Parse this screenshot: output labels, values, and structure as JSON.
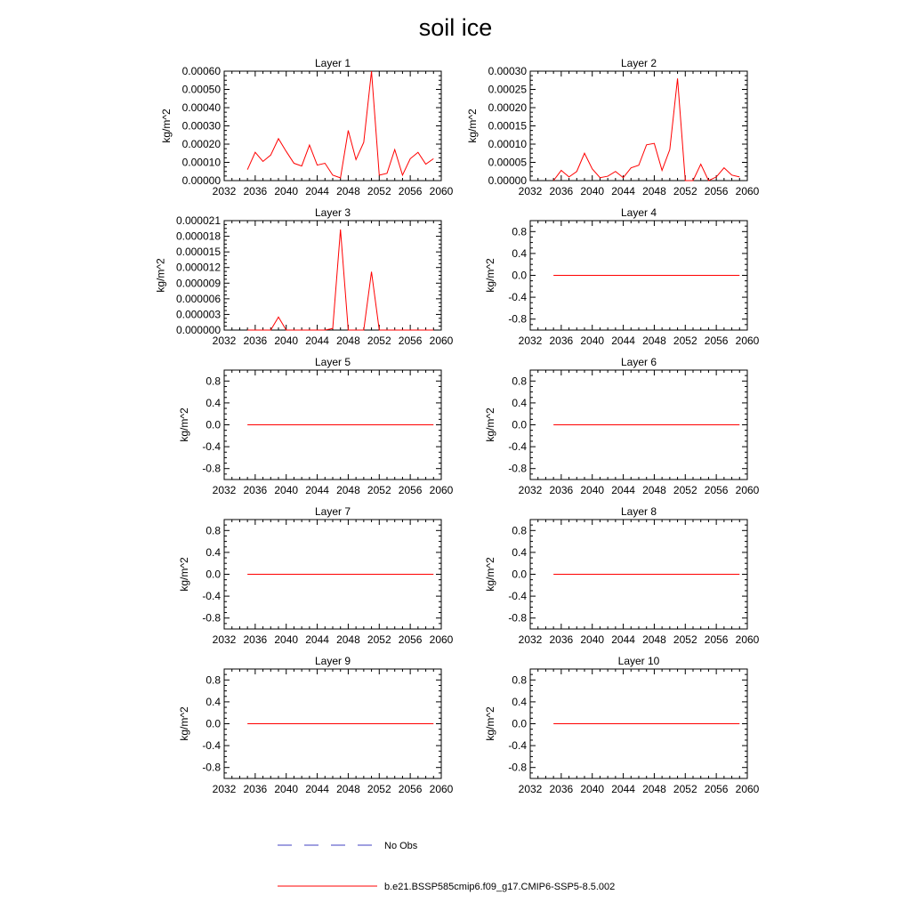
{
  "title": "soil ice",
  "x_ticks": [
    2032,
    2036,
    2040,
    2044,
    2048,
    2052,
    2056,
    2060
  ],
  "legend": [
    {
      "label": "No Obs",
      "color": "#4040c0",
      "style": "dashed"
    },
    {
      "label": "b.e21.BSSP585cmip6.f09_g17.CMIP6-SSP5-8.5.002",
      "color": "#ff0000",
      "style": "solid"
    }
  ],
  "chart_data": [
    {
      "type": "line",
      "title": "Layer 1",
      "ylabel": "kg/m^2",
      "xlim": [
        2032,
        2060
      ],
      "ylim": [
        0,
        0.0006
      ],
      "yticks": [
        "0.00000",
        "0.00010",
        "0.00020",
        "0.00030",
        "0.00040",
        "0.00050",
        "0.00060"
      ],
      "x": [
        2035,
        2036,
        2037,
        2038,
        2039,
        2040,
        2041,
        2042,
        2043,
        2044,
        2045,
        2046,
        2047,
        2048,
        2049,
        2050,
        2051,
        2052,
        2053,
        2054,
        2055,
        2056,
        2057,
        2058,
        2059
      ],
      "series": [
        {
          "color": "#ff0000",
          "values": [
            6e-05,
            0.000155,
            0.000105,
            0.00014,
            0.00023,
            0.00016,
            9.5e-05,
            8e-05,
            0.000195,
            8.5e-05,
            9.5e-05,
            3e-05,
            1.5e-05,
            0.000275,
            0.000115,
            0.00021,
            0.0006,
            3e-05,
            4e-05,
            0.00017,
            3e-05,
            0.00012,
            0.000155,
            9e-05,
            0.00012
          ]
        }
      ]
    },
    {
      "type": "line",
      "title": "Layer 2",
      "ylabel": "kg/m^2",
      "xlim": [
        2032,
        2060
      ],
      "ylim": [
        0,
        0.0003
      ],
      "yticks": [
        "0.00000",
        "0.00005",
        "0.00010",
        "0.00015",
        "0.00020",
        "0.00025",
        "0.00030"
      ],
      "x": [
        2035,
        2036,
        2037,
        2038,
        2039,
        2040,
        2041,
        2042,
        2043,
        2044,
        2045,
        2046,
        2047,
        2048,
        2049,
        2050,
        2051,
        2052,
        2053,
        2054,
        2055,
        2056,
        2057,
        2058,
        2059
      ],
      "series": [
        {
          "color": "#ff0000",
          "values": [
            0,
            2.8e-05,
            1e-05,
            2.5e-05,
            7.5e-05,
            3.2e-05,
            8e-06,
            1.2e-05,
            2.5e-05,
            8e-06,
            3.5e-05,
            4.2e-05,
            9.8e-05,
            0.000102,
            2.8e-05,
            8.5e-05,
            0.00028,
            0,
            0,
            4.5e-05,
            0,
            1e-05,
            3.5e-05,
            1.5e-05,
            1e-05
          ]
        }
      ]
    },
    {
      "type": "line",
      "title": "Layer 3",
      "ylabel": "kg/m^2",
      "xlim": [
        2032,
        2060
      ],
      "ylim": [
        0,
        2.1e-05
      ],
      "yticks": [
        "0.000000",
        "0.000003",
        "0.000006",
        "0.000009",
        "0.000012",
        "0.000015",
        "0.000018",
        "0.000021"
      ],
      "x": [
        2035,
        2036,
        2037,
        2038,
        2039,
        2040,
        2041,
        2042,
        2043,
        2044,
        2045,
        2046,
        2047,
        2048,
        2049,
        2050,
        2051,
        2052,
        2053,
        2054,
        2055,
        2056,
        2057,
        2058,
        2059
      ],
      "series": [
        {
          "color": "#ff0000",
          "values": [
            0,
            0,
            0,
            0,
            2.5e-06,
            0,
            0,
            0,
            0,
            0,
            0,
            3e-07,
            1.93e-05,
            0,
            0,
            0,
            1.12e-05,
            0,
            0,
            0,
            0,
            0,
            0,
            0,
            0
          ]
        }
      ]
    },
    {
      "type": "line",
      "title": "Layer 4",
      "ylabel": "kg/m^2",
      "xlim": [
        2032,
        2060
      ],
      "ylim": [
        -1,
        1
      ],
      "yticks": [
        "-0.8",
        "-0.4",
        "0.0",
        "0.4",
        "0.8"
      ],
      "x": [
        2035,
        2059
      ],
      "series": [
        {
          "color": "#ff0000",
          "values": [
            0,
            0
          ]
        }
      ]
    },
    {
      "type": "line",
      "title": "Layer 5",
      "ylabel": "kg/m^2",
      "xlim": [
        2032,
        2060
      ],
      "ylim": [
        -1,
        1
      ],
      "yticks": [
        "-0.8",
        "-0.4",
        "0.0",
        "0.4",
        "0.8"
      ],
      "x": [
        2035,
        2059
      ],
      "series": [
        {
          "color": "#ff0000",
          "values": [
            0,
            0
          ]
        }
      ]
    },
    {
      "type": "line",
      "title": "Layer 6",
      "ylabel": "kg/m^2",
      "xlim": [
        2032,
        2060
      ],
      "ylim": [
        -1,
        1
      ],
      "yticks": [
        "-0.8",
        "-0.4",
        "0.0",
        "0.4",
        "0.8"
      ],
      "x": [
        2035,
        2059
      ],
      "series": [
        {
          "color": "#ff0000",
          "values": [
            0,
            0
          ]
        }
      ]
    },
    {
      "type": "line",
      "title": "Layer 7",
      "ylabel": "kg/m^2",
      "xlim": [
        2032,
        2060
      ],
      "ylim": [
        -1,
        1
      ],
      "yticks": [
        "-0.8",
        "-0.4",
        "0.0",
        "0.4",
        "0.8"
      ],
      "x": [
        2035,
        2059
      ],
      "series": [
        {
          "color": "#ff0000",
          "values": [
            0,
            0
          ]
        }
      ]
    },
    {
      "type": "line",
      "title": "Layer 8",
      "ylabel": "kg/m^2",
      "xlim": [
        2032,
        2060
      ],
      "ylim": [
        -1,
        1
      ],
      "yticks": [
        "-0.8",
        "-0.4",
        "0.0",
        "0.4",
        "0.8"
      ],
      "x": [
        2035,
        2059
      ],
      "series": [
        {
          "color": "#ff0000",
          "values": [
            0,
            0
          ]
        }
      ]
    },
    {
      "type": "line",
      "title": "Layer 9",
      "ylabel": "kg/m^2",
      "xlim": [
        2032,
        2060
      ],
      "ylim": [
        -1,
        1
      ],
      "yticks": [
        "-0.8",
        "-0.4",
        "0.0",
        "0.4",
        "0.8"
      ],
      "x": [
        2035,
        2059
      ],
      "series": [
        {
          "color": "#ff0000",
          "values": [
            0,
            0
          ]
        }
      ]
    },
    {
      "type": "line",
      "title": "Layer 10",
      "ylabel": "kg/m^2",
      "xlim": [
        2032,
        2060
      ],
      "ylim": [
        -1,
        1
      ],
      "yticks": [
        "-0.8",
        "-0.4",
        "0.0",
        "0.4",
        "0.8"
      ],
      "x": [
        2035,
        2059
      ],
      "series": [
        {
          "color": "#ff0000",
          "values": [
            0,
            0
          ]
        }
      ]
    }
  ]
}
